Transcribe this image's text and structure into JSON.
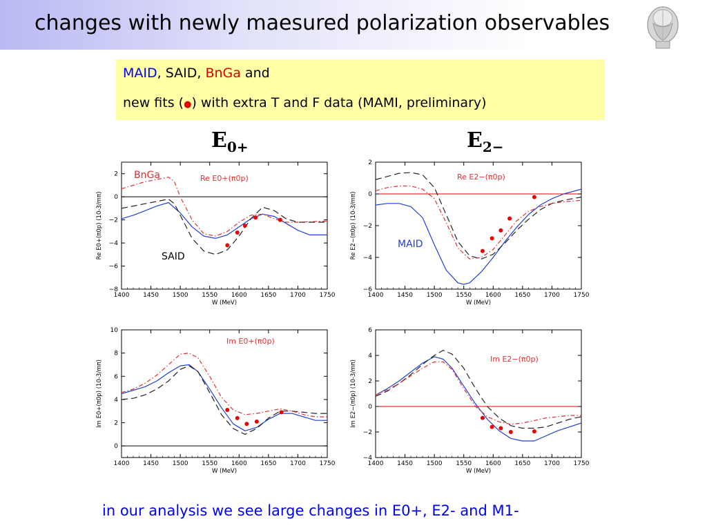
{
  "slide": {
    "title": "changes with newly maesured polarization observables",
    "box_line1": {
      "maid": "MAID",
      "sep1": ", SAID, ",
      "bnga": "BnGa",
      "and": " and"
    },
    "box_line2": {
      "pre": "new fits (",
      "dot": "●",
      "post": ")  with extra T and F data (MAMI, preliminary)"
    },
    "col_left": {
      "main": "E",
      "sub": "0+"
    },
    "col_right": {
      "main": "E",
      "sub": "2−"
    },
    "footer": "in our analysis we see large changes in E0+, E2- and M1-"
  },
  "colors": {
    "maid": "#1f3fd6",
    "said": "#222222",
    "bnga": "#e03030",
    "fit": "#ee0000",
    "zero_red": "#e00000",
    "zero_black": "#000000"
  },
  "chart_data": [
    {
      "type": "line",
      "title": "Re  E0+(π0p)",
      "xlabel": "W  (MeV)",
      "ylabel": "Re  E0+(π0p)  (10-3/mπ)",
      "xlim": [
        1400,
        1750
      ],
      "ylim": [
        -8,
        3
      ],
      "xticks": [
        1400,
        1450,
        1500,
        1550,
        1600,
        1650,
        1700,
        1750
      ],
      "yticks": [
        -8,
        -6,
        -4,
        -2,
        0,
        2
      ],
      "zero_line": "black",
      "annotations": [
        {
          "text": "BnGa",
          "color": "#e03030"
        },
        {
          "text": "SAID",
          "color": "#000000"
        }
      ],
      "series": [
        {
          "name": "MAID",
          "style": "solid",
          "x": [
            1400,
            1420,
            1440,
            1460,
            1480,
            1500,
            1520,
            1540,
            1560,
            1580,
            1600,
            1620,
            1640,
            1660,
            1680,
            1700,
            1720,
            1750
          ],
          "y": [
            -1.9,
            -1.6,
            -1.2,
            -0.8,
            -0.5,
            -1.4,
            -2.6,
            -3.4,
            -3.6,
            -3.3,
            -2.6,
            -1.9,
            -1.5,
            -1.7,
            -2.3,
            -2.9,
            -3.3,
            -3.3
          ]
        },
        {
          "name": "SAID",
          "style": "dashed",
          "x": [
            1400,
            1420,
            1440,
            1460,
            1480,
            1490,
            1500,
            1520,
            1540,
            1560,
            1580,
            1600,
            1620,
            1640,
            1660,
            1680,
            1700,
            1750
          ],
          "y": [
            -1.0,
            -0.8,
            -0.6,
            -0.4,
            -0.2,
            -0.6,
            -1.6,
            -3.6,
            -4.7,
            -5.0,
            -4.6,
            -3.4,
            -1.9,
            -0.9,
            -1.2,
            -1.9,
            -2.2,
            -2.2
          ]
        },
        {
          "name": "BnGa",
          "style": "dashdot",
          "x": [
            1400,
            1420,
            1440,
            1460,
            1480,
            1490,
            1500,
            1520,
            1540,
            1560,
            1580,
            1600,
            1620,
            1640,
            1660,
            1680,
            1700,
            1750
          ],
          "y": [
            0.7,
            1.0,
            1.3,
            1.5,
            1.7,
            1.3,
            0.0,
            -2.0,
            -3.2,
            -3.4,
            -3.0,
            -2.2,
            -1.6,
            -1.5,
            -1.9,
            -2.2,
            -2.2,
            -2.1
          ]
        },
        {
          "name": "new fits",
          "style": "points",
          "x": [
            1580,
            1597,
            1610,
            1628,
            1670
          ],
          "y": [
            -4.2,
            -3.1,
            -2.5,
            -1.8,
            -2.0
          ]
        }
      ]
    },
    {
      "type": "line",
      "title": "Re  E2−(π0p)",
      "xlabel": "W  (MeV)",
      "ylabel": "Re  E2−(π0p)  (10-3/mπ)",
      "xlim": [
        1400,
        1750
      ],
      "ylim": [
        -6,
        2
      ],
      "xticks": [
        1400,
        1450,
        1500,
        1550,
        1600,
        1650,
        1700,
        1750
      ],
      "yticks": [
        -6,
        -4,
        -2,
        0,
        2
      ],
      "zero_line": "red",
      "annotations": [
        {
          "text": "MAID",
          "color": "#1f3fd6"
        }
      ],
      "series": [
        {
          "name": "MAID",
          "style": "solid",
          "x": [
            1400,
            1420,
            1440,
            1460,
            1480,
            1500,
            1520,
            1540,
            1550,
            1560,
            1580,
            1600,
            1620,
            1640,
            1660,
            1680,
            1700,
            1720,
            1750
          ],
          "y": [
            -0.7,
            -0.6,
            -0.6,
            -0.8,
            -1.5,
            -3.2,
            -4.8,
            -5.6,
            -5.7,
            -5.6,
            -4.9,
            -4.0,
            -3.0,
            -2.1,
            -1.3,
            -0.7,
            -0.3,
            0.0,
            0.3
          ]
        },
        {
          "name": "SAID",
          "style": "dashed",
          "x": [
            1400,
            1420,
            1440,
            1460,
            1480,
            1500,
            1520,
            1540,
            1560,
            1580,
            1600,
            1620,
            1640,
            1660,
            1680,
            1700,
            1720,
            1750
          ],
          "y": [
            0.9,
            1.1,
            1.3,
            1.35,
            1.2,
            0.4,
            -1.3,
            -3.0,
            -3.9,
            -4.1,
            -3.8,
            -3.1,
            -2.3,
            -1.6,
            -1.0,
            -0.6,
            -0.4,
            -0.2
          ]
        },
        {
          "name": "BnGa",
          "style": "dashdot",
          "x": [
            1400,
            1420,
            1440,
            1460,
            1480,
            1500,
            1520,
            1540,
            1560,
            1580,
            1600,
            1620,
            1640,
            1660,
            1680,
            1700,
            1720,
            1750
          ],
          "y": [
            0.2,
            0.4,
            0.5,
            0.5,
            0.3,
            -0.3,
            -1.8,
            -3.4,
            -4.1,
            -4.0,
            -3.5,
            -2.6,
            -1.7,
            -1.1,
            -0.8,
            -0.6,
            -0.5,
            -0.4
          ]
        },
        {
          "name": "new fits",
          "style": "points",
          "x": [
            1582,
            1598,
            1613,
            1628,
            1670
          ],
          "y": [
            -3.6,
            -2.8,
            -2.3,
            -1.55,
            -0.2
          ]
        }
      ]
    },
    {
      "type": "line",
      "title": "Im  E0+(π0p)",
      "xlabel": "W  (MeV)",
      "ylabel": "Im  E0+(π0p)  (10-3/mπ)",
      "xlim": [
        1400,
        1750
      ],
      "ylim": [
        -1,
        10
      ],
      "xticks": [
        1400,
        1450,
        1500,
        1550,
        1600,
        1650,
        1700,
        1750
      ],
      "yticks": [
        0,
        2,
        4,
        6,
        8,
        10
      ],
      "zero_line": "black",
      "annotations": [],
      "series": [
        {
          "name": "MAID",
          "style": "solid",
          "x": [
            1400,
            1420,
            1440,
            1460,
            1480,
            1500,
            1515,
            1530,
            1550,
            1570,
            1590,
            1610,
            1630,
            1650,
            1670,
            1690,
            1710,
            1730,
            1750
          ],
          "y": [
            4.5,
            4.8,
            5.1,
            5.6,
            6.3,
            6.9,
            7.0,
            6.4,
            4.9,
            3.3,
            1.9,
            1.3,
            1.6,
            2.3,
            2.8,
            2.8,
            2.5,
            2.2,
            2.2
          ]
        },
        {
          "name": "SAID",
          "style": "dashed",
          "x": [
            1400,
            1420,
            1440,
            1460,
            1480,
            1500,
            1515,
            1530,
            1550,
            1570,
            1590,
            1610,
            1630,
            1650,
            1670,
            1690,
            1710,
            1730,
            1750
          ],
          "y": [
            4.0,
            4.1,
            4.4,
            4.9,
            5.6,
            6.6,
            6.9,
            6.4,
            4.6,
            2.7,
            1.5,
            1.0,
            1.5,
            2.4,
            3.0,
            3.0,
            2.9,
            2.8,
            2.8
          ]
        },
        {
          "name": "BnGa",
          "style": "dashdot",
          "x": [
            1400,
            1420,
            1440,
            1460,
            1480,
            1500,
            1515,
            1530,
            1550,
            1570,
            1590,
            1610,
            1630,
            1650,
            1670,
            1690,
            1710,
            1730,
            1750
          ],
          "y": [
            4.6,
            4.9,
            5.4,
            6.1,
            7.0,
            7.9,
            8.0,
            7.6,
            6.0,
            4.2,
            3.1,
            2.7,
            2.8,
            3.0,
            3.2,
            3.0,
            2.7,
            2.5,
            2.5
          ]
        },
        {
          "name": "new fits",
          "style": "points",
          "x": [
            1580,
            1597,
            1613,
            1630,
            1672
          ],
          "y": [
            3.1,
            2.4,
            1.9,
            2.1,
            2.9
          ]
        }
      ]
    },
    {
      "type": "line",
      "title": "Im  E2−(π0p)",
      "xlabel": "W  (MeV)",
      "ylabel": "Im  E2−(π0p)  (10-3/mπ)",
      "xlim": [
        1400,
        1750
      ],
      "ylim": [
        -4,
        6
      ],
      "xticks": [
        1400,
        1450,
        1500,
        1550,
        1600,
        1650,
        1700,
        1750
      ],
      "yticks": [
        -4,
        -2,
        0,
        2,
        4,
        6
      ],
      "zero_line": "red",
      "annotations": [],
      "series": [
        {
          "name": "MAID",
          "style": "solid",
          "x": [
            1400,
            1420,
            1440,
            1460,
            1480,
            1500,
            1515,
            1530,
            1550,
            1570,
            1590,
            1610,
            1630,
            1650,
            1670,
            1690,
            1710,
            1730,
            1750
          ],
          "y": [
            0.9,
            1.4,
            2.0,
            2.7,
            3.4,
            3.9,
            3.7,
            3.0,
            1.6,
            0.2,
            -1.0,
            -1.9,
            -2.5,
            -2.7,
            -2.7,
            -2.3,
            -1.9,
            -1.6,
            -1.3
          ]
        },
        {
          "name": "SAID",
          "style": "dashed",
          "x": [
            1400,
            1420,
            1440,
            1460,
            1480,
            1500,
            1515,
            1530,
            1550,
            1570,
            1590,
            1610,
            1630,
            1650,
            1670,
            1690,
            1710,
            1730,
            1750
          ],
          "y": [
            0.8,
            1.2,
            1.8,
            2.5,
            3.3,
            4.0,
            4.4,
            4.1,
            3.0,
            1.4,
            0.0,
            -0.9,
            -1.5,
            -1.7,
            -1.7,
            -1.6,
            -1.3,
            -1.0,
            -0.8
          ]
        },
        {
          "name": "BnGa",
          "style": "dashdot",
          "x": [
            1400,
            1420,
            1440,
            1460,
            1480,
            1500,
            1515,
            1530,
            1550,
            1570,
            1590,
            1610,
            1630,
            1650,
            1670,
            1690,
            1710,
            1730,
            1750
          ],
          "y": [
            0.9,
            1.3,
            1.8,
            2.4,
            3.0,
            3.5,
            3.5,
            2.9,
            1.4,
            0.0,
            -0.8,
            -1.2,
            -1.4,
            -1.3,
            -1.1,
            -0.9,
            -0.8,
            -0.7,
            -0.7
          ]
        },
        {
          "name": "new fits",
          "style": "points",
          "x": [
            1582,
            1598,
            1613,
            1630,
            1670
          ],
          "y": [
            -0.9,
            -1.6,
            -1.7,
            -2.0,
            -1.95
          ]
        }
      ]
    }
  ]
}
